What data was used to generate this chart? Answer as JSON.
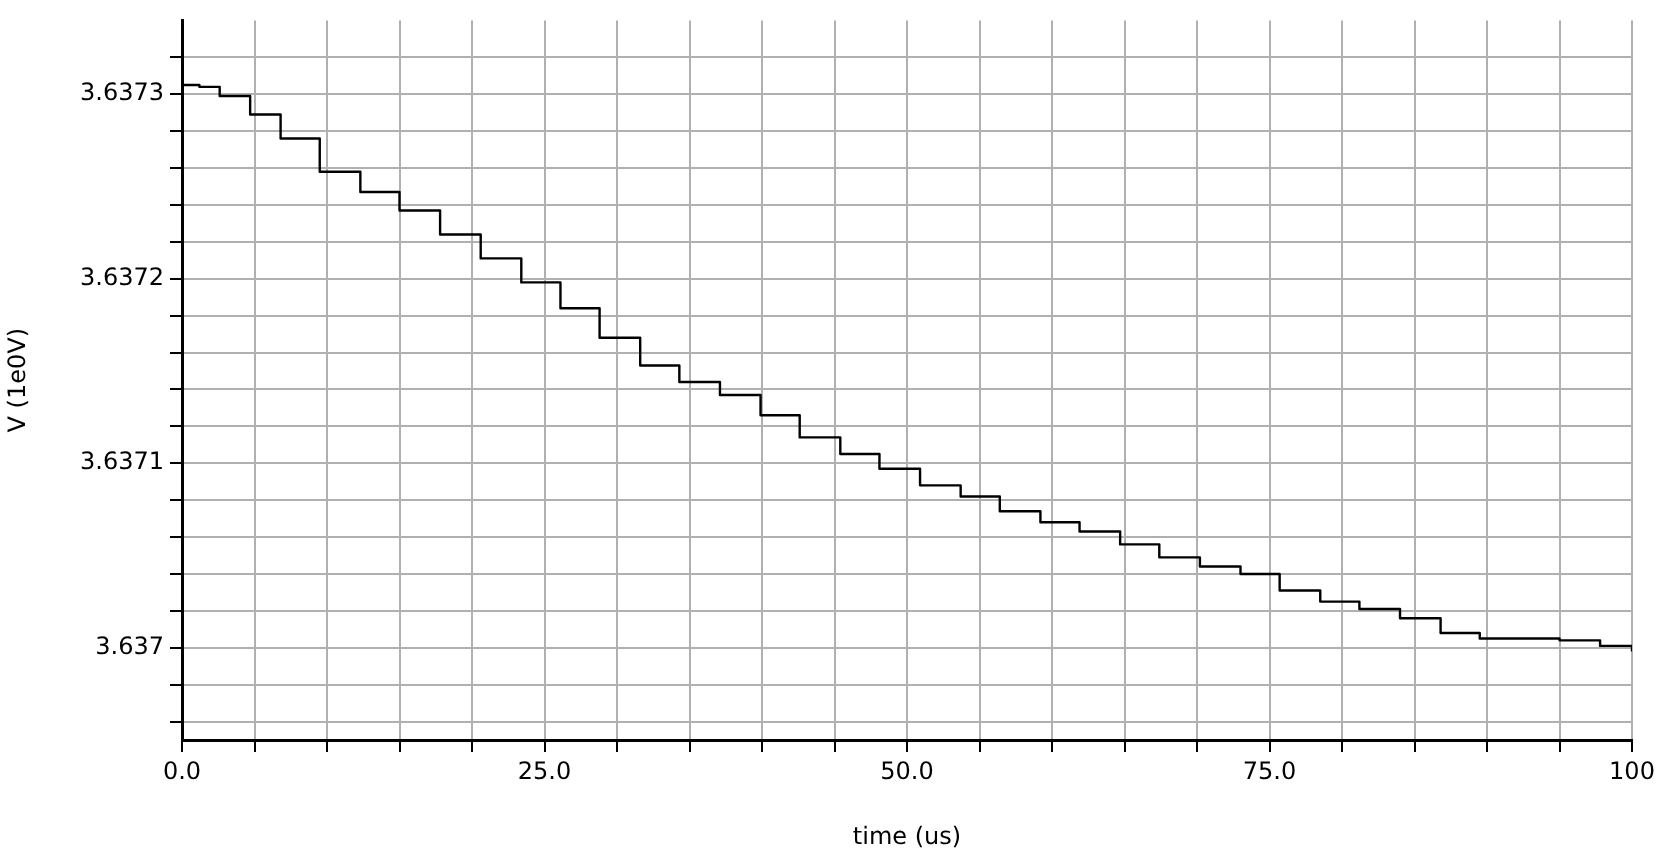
{
  "chart_data": {
    "type": "step",
    "xlabel": "time (us)",
    "ylabel": "V (1e0V)",
    "x": [
      0,
      1.2,
      2.6,
      4.7,
      6.8,
      9.5,
      12.3,
      15,
      17.8,
      20.6,
      23.4,
      26.1,
      28.8,
      31.6,
      34.3,
      37.1,
      39.9,
      42.6,
      45.4,
      48.1,
      50.9,
      53.7,
      56.4,
      59.2,
      61.9,
      64.7,
      67.4,
      70.2,
      73,
      75.7,
      78.5,
      81.2,
      84,
      86.8,
      89.5,
      92.3,
      95,
      97.8,
      100
    ],
    "series": [
      {
        "color": "#000000",
        "values": [
          3.637305,
          3.637304,
          3.637299,
          3.637289,
          3.637276,
          3.637258,
          3.637247,
          3.637237,
          3.637224,
          3.637211,
          3.637198,
          3.637184,
          3.637168,
          3.637153,
          3.637144,
          3.637137,
          3.637126,
          3.637114,
          3.637105,
          3.637097,
          3.637088,
          3.637082,
          3.637074,
          3.637068,
          3.637063,
          3.637056,
          3.637049,
          3.637044,
          3.63704,
          3.637031,
          3.637025,
          3.637021,
          3.637016,
          3.637008,
          3.637005,
          3.637005,
          3.637004,
          3.637001,
          3.636998
        ]
      }
    ],
    "xlim": [
      0,
      100
    ],
    "xticks": [
      {
        "value": 0,
        "label": "0.0"
      },
      {
        "value": 5,
        "label": null
      },
      {
        "value": 10,
        "label": null
      },
      {
        "value": 15,
        "label": null
      },
      {
        "value": 20,
        "label": null
      },
      {
        "value": 25,
        "label": "25.0"
      },
      {
        "value": 30,
        "label": null
      },
      {
        "value": 35,
        "label": null
      },
      {
        "value": 40,
        "label": null
      },
      {
        "value": 45,
        "label": null
      },
      {
        "value": 50,
        "label": "50.0"
      },
      {
        "value": 55,
        "label": null
      },
      {
        "value": 60,
        "label": null
      },
      {
        "value": 65,
        "label": null
      },
      {
        "value": 70,
        "label": null
      },
      {
        "value": 75,
        "label": "75.0"
      },
      {
        "value": 80,
        "label": null
      },
      {
        "value": 85,
        "label": null
      },
      {
        "value": 90,
        "label": null
      },
      {
        "value": 95,
        "label": null
      },
      100
    ],
    "ylim": [
      3.63695,
      3.63734
    ],
    "yticks": [
      {
        "value": 3.63696,
        "label": null
      },
      {
        "value": 3.63698,
        "label": null
      },
      3.637,
      {
        "value": 3.63702,
        "label": null
      },
      {
        "value": 3.63704,
        "label": null
      },
      {
        "value": 3.63706,
        "label": null
      },
      {
        "value": 3.63708,
        "label": null
      },
      3.6371,
      {
        "value": 3.63712,
        "label": null
      },
      {
        "value": 3.63714,
        "label": null
      },
      {
        "value": 3.63716,
        "label": null
      },
      {
        "value": 3.63718,
        "label": null
      },
      3.6372,
      {
        "value": 3.63722,
        "label": null
      },
      {
        "value": 3.63724,
        "label": null
      },
      {
        "value": 3.63726,
        "label": null
      },
      {
        "value": 3.63728,
        "label": null
      },
      3.6373,
      {
        "value": 3.63732,
        "label": null
      }
    ],
    "grid": true,
    "legend": false,
    "marker": "none",
    "line_style": "solid"
  }
}
